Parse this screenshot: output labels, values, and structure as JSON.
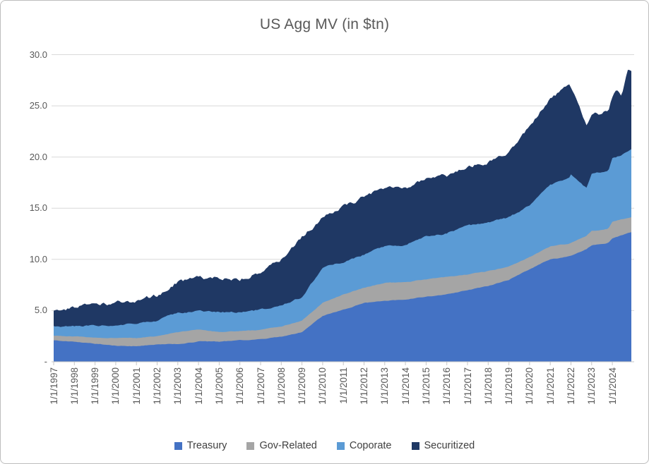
{
  "title": "US Agg MV (in $tn)",
  "colors": {
    "treasury": "#4472C4",
    "gov_related": "#A5A5A5",
    "corporate": "#5B9BD5",
    "securitized": "#1F3864",
    "gridline": "#D9D9D9",
    "axis_line": "#C6C6C6",
    "axis_text": "#595959",
    "legend_text": "#404040",
    "frame_border": "#BDBDBD"
  },
  "y_axis": {
    "tick_labels": [
      "30.0",
      "25.0",
      "20.0",
      "15.0",
      "10.0",
      "5.0",
      "-"
    ],
    "tick_values": [
      30,
      25,
      20,
      15,
      10,
      5,
      0
    ]
  },
  "x_axis": {
    "tick_labels": [
      "1/1/1997",
      "1/1/1998",
      "1/1/1999",
      "1/1/2000",
      "1/1/2001",
      "1/1/2002",
      "1/1/2003",
      "1/1/2004",
      "1/1/2005",
      "1/1/2006",
      "1/1/2007",
      "1/1/2008",
      "1/1/2009",
      "1/1/2010",
      "1/1/2011",
      "1/1/2012",
      "1/1/2013",
      "1/1/2014",
      "1/1/2015",
      "1/1/2016",
      "1/1/2017",
      "1/1/2018",
      "1/1/2019",
      "1/1/2020",
      "1/1/2021",
      "1/1/2022",
      "1/1/2023",
      "1/1/2024"
    ]
  },
  "legend": [
    {
      "label": "Treasury",
      "color": "#4472C4"
    },
    {
      "label": "Gov-Related",
      "color": "#A5A5A5"
    },
    {
      "label": "Coporate",
      "color": "#5B9BD5"
    },
    {
      "label": "Securitized",
      "color": "#1F3864"
    }
  ],
  "chart_data": {
    "type": "area",
    "stacked": true,
    "title": "US Agg MV (in $tn)",
    "xlabel": "",
    "ylabel": "",
    "ylim": [
      0,
      30
    ],
    "y_step": 5,
    "grid": true,
    "legend_position": "bottom",
    "x_unit": "year (monthly series, 1/1/1997 to late 2024)",
    "x": [
      1997,
      1998,
      1999,
      2000,
      2001,
      2002,
      2003,
      2004,
      2005,
      2006,
      2007,
      2008,
      2009,
      2010,
      2011,
      2012,
      2013,
      2014,
      2015,
      2016,
      2017,
      2018,
      2019,
      2020,
      2021,
      2021.9,
      2022,
      2022.75,
      2023,
      2023.8,
      2024,
      2024.2,
      2024.45,
      2024.75,
      2024.92
    ],
    "series": [
      {
        "name": "Treasury",
        "color": "#4472C4",
        "values": [
          2.1,
          1.95,
          1.75,
          1.56,
          1.51,
          1.7,
          1.74,
          1.97,
          1.97,
          2.09,
          2.2,
          2.43,
          2.89,
          4.5,
          5.07,
          5.76,
          5.95,
          6.1,
          6.35,
          6.6,
          7.0,
          7.4,
          8.0,
          9.05,
          10.0,
          10.3,
          10.34,
          11.0,
          11.38,
          11.6,
          12.07,
          12.2,
          12.35,
          12.55,
          12.64
        ]
      },
      {
        "name": "Gov-Related",
        "color": "#A5A5A5",
        "values": [
          0.45,
          0.53,
          0.64,
          0.76,
          0.81,
          0.78,
          1.15,
          1.15,
          0.92,
          0.92,
          0.92,
          1.03,
          1.15,
          1.26,
          1.49,
          1.49,
          1.76,
          1.65,
          1.7,
          1.68,
          1.51,
          1.46,
          1.3,
          1.15,
          1.25,
          1.25,
          1.27,
          1.3,
          1.38,
          1.4,
          1.6,
          1.6,
          1.6,
          1.5,
          1.49
        ]
      },
      {
        "name": "Coporate",
        "color": "#5B9BD5",
        "values": [
          0.91,
          0.98,
          1.19,
          1.26,
          1.44,
          1.56,
          1.88,
          1.84,
          1.95,
          1.83,
          1.95,
          2.07,
          2.29,
          3.44,
          3.21,
          3.21,
          3.55,
          3.65,
          4.25,
          4.25,
          4.82,
          4.7,
          4.8,
          5.08,
          5.98,
          6.4,
          6.65,
          4.65,
          5.54,
          5.6,
          6.2,
          6.2,
          6.25,
          6.55,
          6.65
        ]
      },
      {
        "name": "Securitized",
        "color": "#1F3864",
        "values": [
          1.49,
          1.84,
          2.02,
          2.18,
          2.14,
          2.41,
          3.05,
          3.14,
          3.33,
          3.21,
          3.67,
          4.47,
          5.87,
          4.93,
          5.39,
          5.62,
          5.74,
          5.5,
          5.62,
          5.62,
          5.85,
          5.96,
          6.2,
          7.62,
          8.57,
          8.9,
          8.37,
          6.15,
          5.7,
          5.86,
          5.96,
          6.75,
          5.9,
          7.87,
          7.37
        ]
      }
    ],
    "stacked_totals_at_jan": {
      "1997": 4.95,
      "2000": 5.76,
      "2003": 7.82,
      "2008": 10.0,
      "2010": 14.1,
      "2013": 17.0,
      "2016": 18.2,
      "2019": 20.3,
      "2021": 25.8,
      "2022": 26.6,
      "2023": 24.0,
      "2024": 25.8,
      "end_2024": 28.2
    }
  }
}
